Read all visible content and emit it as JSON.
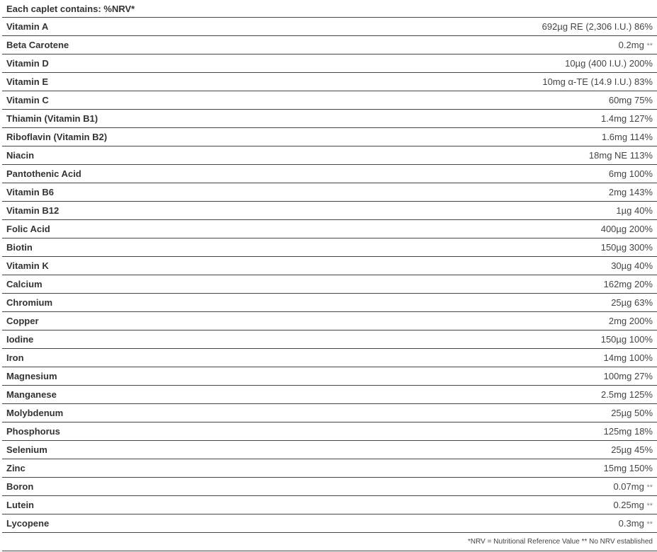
{
  "header": "Each caplet contains: %NRV*",
  "rows": [
    {
      "name": "Vitamin A",
      "value": "692µg RE (2,306 I.U.) 86%",
      "stars": ""
    },
    {
      "name": "Beta Carotene",
      "value": "0.2mg",
      "stars": "**"
    },
    {
      "name": "Vitamin D",
      "value": "10µg (400 I.U.) 200%",
      "stars": ""
    },
    {
      "name": "Vitamin E",
      "value": "10mg α-TE (14.9 I.U.) 83%",
      "stars": ""
    },
    {
      "name": "Vitamin C",
      "value": "60mg 75%",
      "stars": ""
    },
    {
      "name": "Thiamin (Vitamin B1)",
      "value": "1.4mg 127%",
      "stars": ""
    },
    {
      "name": "Riboflavin (Vitamin B2)",
      "value": "1.6mg 114%",
      "stars": ""
    },
    {
      "name": "Niacin",
      "value": "18mg NE 113%",
      "stars": ""
    },
    {
      "name": "Pantothenic Acid",
      "value": "6mg 100%",
      "stars": ""
    },
    {
      "name": "Vitamin B6",
      "value": "2mg 143%",
      "stars": ""
    },
    {
      "name": "Vitamin B12",
      "value": "1µg 40%",
      "stars": ""
    },
    {
      "name": "Folic Acid",
      "value": "400µg 200%",
      "stars": ""
    },
    {
      "name": "Biotin",
      "value": "150µg 300%",
      "stars": ""
    },
    {
      "name": "Vitamin K",
      "value": "30µg 40%",
      "stars": ""
    },
    {
      "name": "Calcium",
      "value": "162mg 20%",
      "stars": ""
    },
    {
      "name": "Chromium",
      "value": "25µg 63%",
      "stars": ""
    },
    {
      "name": "Copper",
      "value": "2mg 200%",
      "stars": ""
    },
    {
      "name": "Iodine",
      "value": "150µg 100%",
      "stars": ""
    },
    {
      "name": "Iron",
      "value": "14mg 100%",
      "stars": ""
    },
    {
      "name": "Magnesium",
      "value": "100mg 27%",
      "stars": ""
    },
    {
      "name": "Manganese",
      "value": "2.5mg 125%",
      "stars": ""
    },
    {
      "name": "Molybdenum",
      "value": "25µg 50%",
      "stars": ""
    },
    {
      "name": "Phosphorus",
      "value": "125mg 18%",
      "stars": ""
    },
    {
      "name": "Selenium",
      "value": "25µg 45%",
      "stars": ""
    },
    {
      "name": "Zinc",
      "value": "15mg 150%",
      "stars": ""
    },
    {
      "name": "Boron",
      "value": "0.07mg",
      "stars": "**"
    },
    {
      "name": "Lutein",
      "value": "0.25mg",
      "stars": "**"
    },
    {
      "name": "Lycopene",
      "value": "0.3mg",
      "stars": "**"
    }
  ],
  "footnote": "*NRV = Nutritional Reference Value ** No NRV established"
}
